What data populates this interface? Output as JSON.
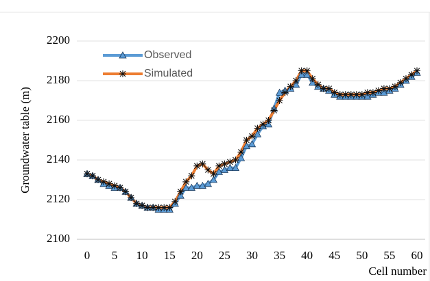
{
  "chart_data": {
    "type": "line",
    "x_label": "Cell number",
    "y_label": "Groundwater table (m)",
    "x": [
      0,
      1,
      2,
      3,
      4,
      5,
      6,
      7,
      8,
      9,
      10,
      11,
      12,
      13,
      14,
      15,
      16,
      17,
      18,
      19,
      20,
      21,
      22,
      23,
      24,
      25,
      26,
      27,
      28,
      29,
      30,
      31,
      32,
      33,
      34,
      35,
      36,
      37,
      38,
      39,
      40,
      41,
      42,
      43,
      44,
      45,
      46,
      47,
      48,
      49,
      50,
      51,
      52,
      53,
      54,
      55,
      56,
      57,
      58,
      59,
      60
    ],
    "series": [
      {
        "name": "Observed",
        "color": "#5b9bd5",
        "marker": "triangle",
        "values": [
          2133,
          2132,
          2130,
          2128,
          2127,
          2126,
          2126,
          2124,
          2121,
          2118,
          2117,
          2116,
          2116,
          2115,
          2115,
          2115,
          2118,
          2122,
          2126,
          2126,
          2127,
          2127,
          2128,
          2130,
          2134,
          2135,
          2136,
          2136,
          2141,
          2147,
          2148,
          2153,
          2157,
          2158,
          2166,
          2174,
          2175,
          2176,
          2178,
          2183,
          2183,
          2179,
          2177,
          2176,
          2175,
          2173,
          2172,
          2172,
          2172,
          2172,
          2172,
          2172,
          2173,
          2174,
          2174,
          2175,
          2176,
          2178,
          2180,
          2182,
          2184
        ]
      },
      {
        "name": "Simulated",
        "color": "#ed7d31",
        "marker": "star",
        "values": [
          2133,
          2132,
          2130,
          2129,
          2128,
          2127,
          2126,
          2124,
          2121,
          2118,
          2117,
          2116,
          2116,
          2116,
          2116,
          2116,
          2119,
          2124,
          2129,
          2132,
          2137,
          2138,
          2135,
          2133,
          2137,
          2138,
          2139,
          2140,
          2144,
          2150,
          2152,
          2156,
          2158,
          2160,
          2165,
          2170,
          2174,
          2177,
          2180,
          2185,
          2185,
          2181,
          2178,
          2176,
          2176,
          2174,
          2173,
          2173,
          2173,
          2173,
          2173,
          2174,
          2174,
          2175,
          2176,
          2176,
          2177,
          2179,
          2181,
          2183,
          2185
        ]
      }
    ],
    "xlim": [
      0,
      60
    ],
    "xticks": [
      0,
      5,
      10,
      15,
      20,
      25,
      30,
      35,
      40,
      45,
      50,
      55,
      60
    ],
    "ylim": [
      2100,
      2200
    ],
    "yticks": [
      2100,
      2120,
      2140,
      2160,
      2180,
      2200
    ],
    "grid": true,
    "legend": "top-left"
  }
}
